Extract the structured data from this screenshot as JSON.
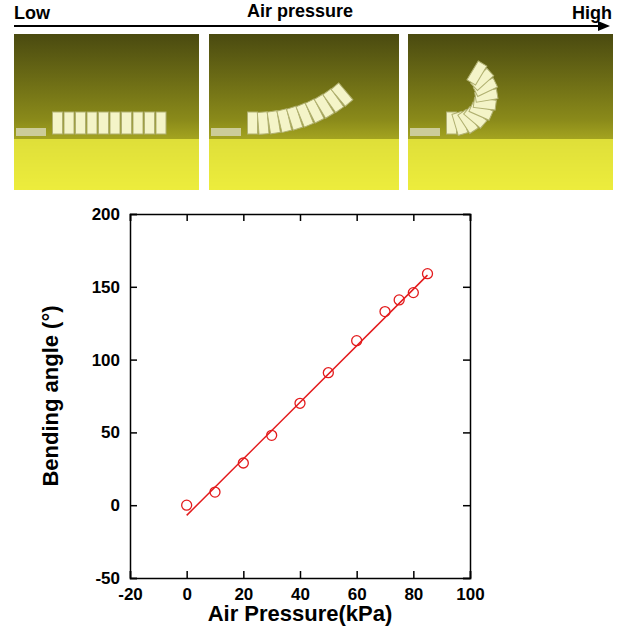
{
  "header": {
    "low": "Low",
    "title": "Air pressure",
    "high": "High"
  },
  "chart_data": {
    "type": "scatter",
    "x_label": "Air Pressure(kPa)",
    "y_label": "Bending angle (°)",
    "xlim": [
      -20,
      100
    ],
    "xticks": [
      -20,
      0,
      20,
      40,
      60,
      80,
      100
    ],
    "ylim": [
      -50,
      200
    ],
    "yticks": [
      -50,
      0,
      50,
      100,
      150,
      200
    ],
    "grid": false,
    "series": [
      {
        "type": "scatter",
        "marker": "circle",
        "color": "#e31a1c",
        "x": [
          0,
          10,
          20,
          30,
          40,
          50,
          60,
          70,
          75,
          80,
          85
        ],
        "values": [
          0,
          9,
          29,
          48,
          70,
          91,
          113,
          133,
          141,
          146,
          159
        ]
      },
      {
        "type": "line",
        "line_style": "solid",
        "color": "#e31a1c",
        "x": [
          0,
          85
        ],
        "values": [
          -7,
          158
        ]
      }
    ]
  }
}
